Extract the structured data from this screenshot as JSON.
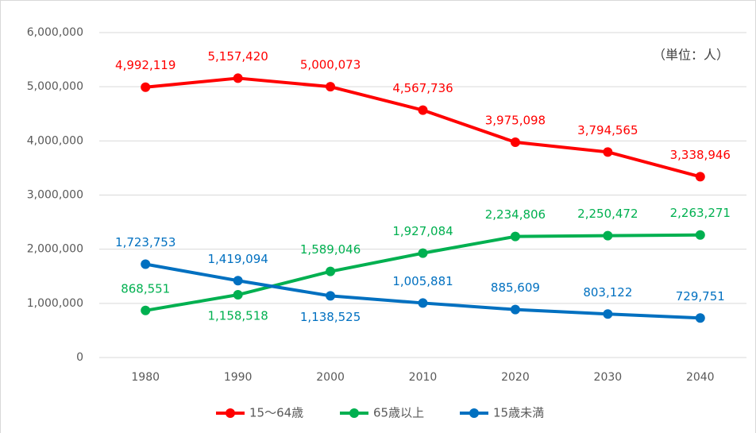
{
  "chart_data": {
    "type": "line",
    "annotation": "（単位：人）",
    "categories": [
      "1980",
      "1990",
      "2000",
      "2010",
      "2020",
      "2030",
      "2040"
    ],
    "series": [
      {
        "name": "15～64歳",
        "color": "#ff0000",
        "values": [
          4992119,
          5157420,
          5000073,
          4567736,
          3975098,
          3794565,
          3338946
        ],
        "value_labels": [
          "4,992,119",
          "5,157,420",
          "5,000,073",
          "4,567,736",
          "3,975,098",
          "3,794,565",
          "3,338,946"
        ]
      },
      {
        "name": "65歳以上",
        "color": "#00b050",
        "values": [
          868551,
          1158518,
          1589046,
          1927084,
          2234806,
          2250472,
          2263271
        ],
        "value_labels": [
          "868,551",
          "1,158,518",
          "1,589,046",
          "1,927,084",
          "2,234,806",
          "2,250,472",
          "2,263,271"
        ]
      },
      {
        "name": "15歳未満",
        "color": "#0070c0",
        "values": [
          1723753,
          1419094,
          1138525,
          1005881,
          885609,
          803122,
          729751
        ],
        "value_labels": [
          "1,723,753",
          "1,419,094",
          "1,138,525",
          "1,005,881",
          "885,609",
          "803,122",
          "729,751"
        ]
      }
    ],
    "ylim": [
      0,
      6000000
    ],
    "yticks": [
      0,
      {
        "value": 1000000,
        "label": "1,000,000"
      },
      {
        "value": 2000000,
        "label": "2,000,000"
      },
      {
        "value": 3000000,
        "label": "3,000,000"
      },
      {
        "value": 4000000,
        "label": "4,000,000"
      },
      {
        "value": 5000000,
        "label": "5,000,000"
      },
      {
        "value": 6000000,
        "label": "6,000,000"
      }
    ],
    "grid": true,
    "legend": "bottom"
  }
}
